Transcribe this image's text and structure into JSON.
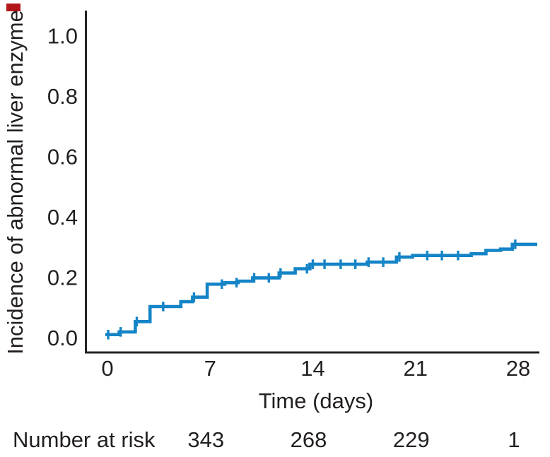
{
  "artifact": {
    "corner_mark_color": "#b2161b"
  },
  "colors": {
    "axis": "#262321",
    "text": "#231f1f",
    "curve": "#1484c7"
  },
  "chart_data": {
    "type": "step",
    "subtype": "kaplan-meier-cumulative-incidence",
    "title": "",
    "xlabel": "Time (days)",
    "ylabel": "Incidence of abnormal liver enzyme",
    "grid": false,
    "legend": "none",
    "x_axis": {
      "range": [
        0,
        29.3
      ],
      "ticks": [
        {
          "label": "0",
          "value": 0
        },
        {
          "label": "7",
          "value": 7
        },
        {
          "label": "14",
          "value": 14
        },
        {
          "label": "21",
          "value": 21
        },
        {
          "label": "28",
          "value": 28
        }
      ]
    },
    "y_axis": {
      "range": [
        0.0,
        1.0
      ],
      "ticks": [
        {
          "label": "1.0",
          "value": 1.0
        },
        {
          "label": "0.8",
          "value": 0.8
        },
        {
          "label": "0.6",
          "value": 0.6
        },
        {
          "label": "0.4",
          "value": 0.4
        },
        {
          "label": "0.2",
          "value": 0.2
        },
        {
          "label": "0.0",
          "value": 0.0
        }
      ]
    },
    "series": [
      {
        "name": "Incidence of abnormal liver enzyme",
        "color": "#1484c7",
        "steps": [
          [
            0.0,
            0.01
          ],
          [
            0.8,
            0.019
          ],
          [
            1.9,
            0.053
          ],
          [
            2.9,
            0.103
          ],
          [
            5.0,
            0.119
          ],
          [
            5.8,
            0.134
          ],
          [
            6.8,
            0.177
          ],
          [
            8.0,
            0.182
          ],
          [
            8.9,
            0.187
          ],
          [
            9.9,
            0.198
          ],
          [
            11.7,
            0.214
          ],
          [
            12.8,
            0.228
          ],
          [
            13.8,
            0.243
          ],
          [
            17.7,
            0.25
          ],
          [
            19.7,
            0.267
          ],
          [
            20.8,
            0.272
          ],
          [
            24.8,
            0.278
          ],
          [
            25.8,
            0.289
          ],
          [
            26.8,
            0.293
          ],
          [
            27.6,
            0.309
          ]
        ],
        "end_day": 29.3,
        "censor_days": [
          0.05,
          0.9,
          2.0,
          3.8,
          5.9,
          7.8,
          8.8,
          10.0,
          11.0,
          11.8,
          13.6,
          14.0,
          14.8,
          15.9,
          16.9,
          17.8,
          18.8,
          19.9,
          21.8,
          22.8,
          23.9,
          27.8
        ]
      }
    ],
    "at_risk": {
      "label": "Number at risk",
      "entries": [
        {
          "time": 7,
          "count": "343"
        },
        {
          "time": 14,
          "count": "268"
        },
        {
          "time": 21,
          "count": "229"
        },
        {
          "time": 28,
          "count": "1"
        }
      ]
    }
  }
}
